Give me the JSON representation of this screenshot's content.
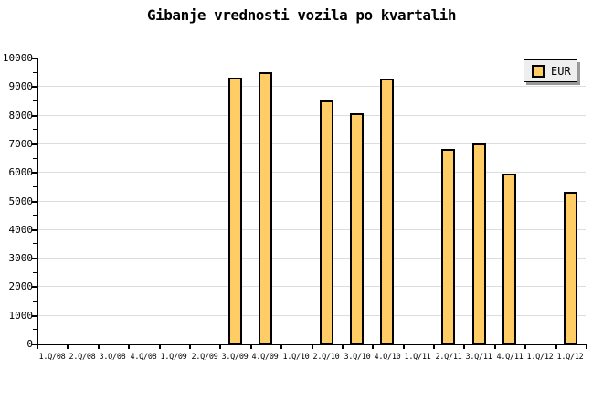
{
  "title": "Gibanje vrednosti vozila po kvartalih",
  "legend": {
    "label": "EUR"
  },
  "colors": {
    "background": "#FFFFFF",
    "bar_fill": "#FFCC66",
    "bar_border": "#000000",
    "grid": "#DDDDDD",
    "axis": "#000000",
    "text": "#000000",
    "legend_bg": "#EEEEEE",
    "legend_shadow": "#999999"
  },
  "chart_data": {
    "type": "bar",
    "title": "Gibanje vrednosti vozila po kvartalih",
    "categories": [
      "1.Q/08",
      "2.Q/08",
      "3.Q/08",
      "4.Q/08",
      "1.Q/09",
      "2.Q/09",
      "3.Q/09",
      "4.Q/09",
      "1.Q/10",
      "2.Q/10",
      "3.Q/10",
      "4.Q/10",
      "1.Q/11",
      "2.Q/11",
      "3.Q/11",
      "4.Q/11",
      "1.Q/12",
      "1.Q/12"
    ],
    "series": [
      {
        "name": "EUR",
        "values": [
          null,
          null,
          null,
          null,
          null,
          null,
          9300,
          9500,
          null,
          8500,
          8050,
          9250,
          null,
          6800,
          7000,
          5950,
          null,
          5300
        ]
      }
    ],
    "xlabel": "",
    "ylabel": "",
    "ylim": [
      0,
      10000
    ],
    "ytick_step": 1000,
    "ytick_minor_step": 500,
    "yticks": [
      0,
      1000,
      2000,
      3000,
      4000,
      5000,
      6000,
      7000,
      8000,
      9000,
      10000
    ],
    "grid": "horizontal-major",
    "legend_position": "top-right"
  }
}
